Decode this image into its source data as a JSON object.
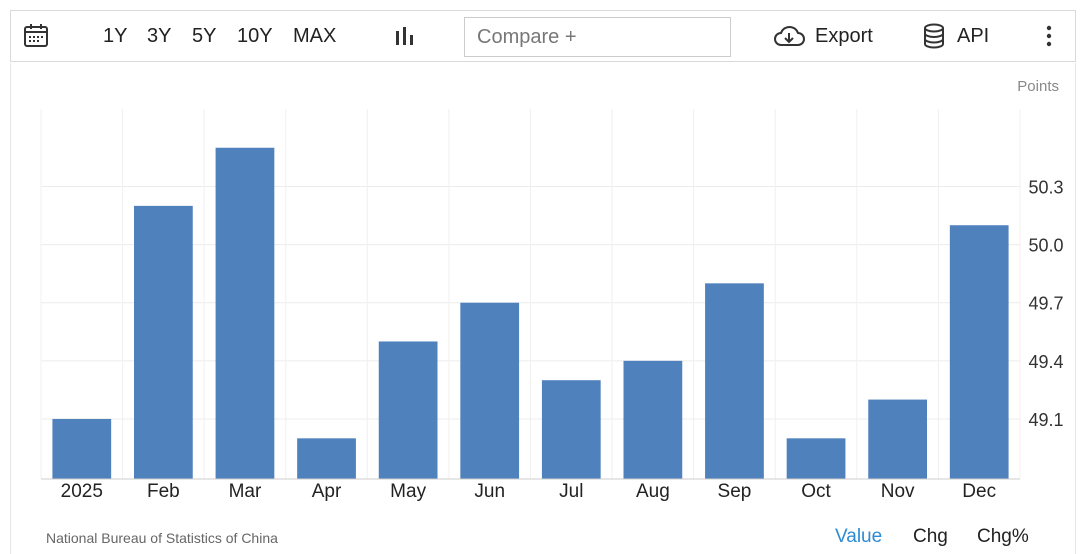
{
  "toolbar": {
    "calendar_icon": "calendar-icon",
    "ranges": [
      "1Y",
      "3Y",
      "5Y",
      "10Y",
      "MAX"
    ],
    "chart_type_icon": "bar-chart-icon",
    "compare_placeholder": "Compare +",
    "export_label": "Export",
    "export_icon": "cloud-download-icon",
    "api_label": "API",
    "api_icon": "database-icon",
    "more_icon": "kebab-menu-icon"
  },
  "chart_data": {
    "type": "bar",
    "categories": [
      "2025",
      "Feb",
      "Mar",
      "Apr",
      "May",
      "Jun",
      "Jul",
      "Aug",
      "Sep",
      "Oct",
      "Nov",
      "Dec"
    ],
    "values": [
      49.1,
      50.2,
      50.5,
      49.0,
      49.5,
      49.7,
      49.3,
      49.4,
      49.8,
      49.0,
      49.2,
      50.1
    ],
    "unit_label": "Points",
    "yticks": [
      49.1,
      49.4,
      49.7,
      50.0,
      50.3
    ],
    "ylim": [
      48.79,
      50.7
    ],
    "y_axis_position": "right",
    "grid": true,
    "bar_color": "#4f81bd"
  },
  "footer": {
    "source": "National Bureau of Statistics of China",
    "tabs": [
      "Value",
      "Chg",
      "Chg%"
    ],
    "active_tab": "Value",
    "active_color": "#2d8bd4"
  }
}
